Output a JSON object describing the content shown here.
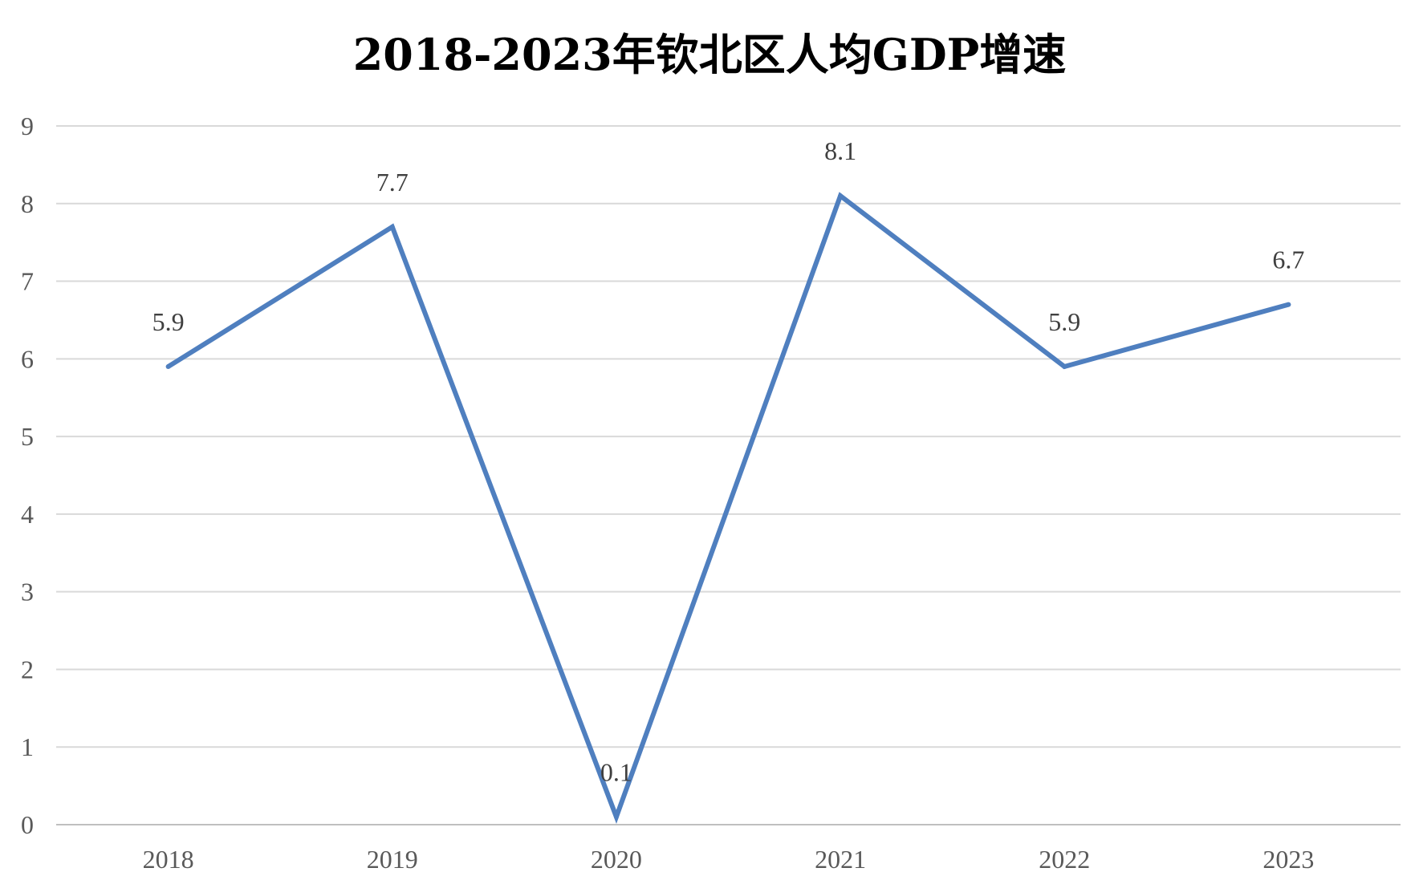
{
  "chart_data": {
    "type": "line",
    "title": "2018-2023年钦北区人均GDP增速",
    "xlabel": "",
    "ylabel": "",
    "categories": [
      "2018",
      "2019",
      "2020",
      "2021",
      "2022",
      "2023"
    ],
    "series": [
      {
        "values": [
          5.9,
          7.7,
          0.1,
          8.1,
          5.9,
          6.7
        ]
      }
    ],
    "data_labels": [
      "5.9",
      "7.7",
      "0.1",
      "8.1",
      "5.9",
      "6.7"
    ],
    "ylim": [
      0,
      9
    ],
    "y_ticks": [
      "0",
      "1",
      "2",
      "3",
      "4",
      "5",
      "6",
      "7",
      "8",
      "9"
    ],
    "grid": true,
    "legend": "none",
    "colors": {
      "line": "#4f7fbf",
      "grid": "#d9d9d9",
      "axis": "#bfbfbf"
    }
  }
}
